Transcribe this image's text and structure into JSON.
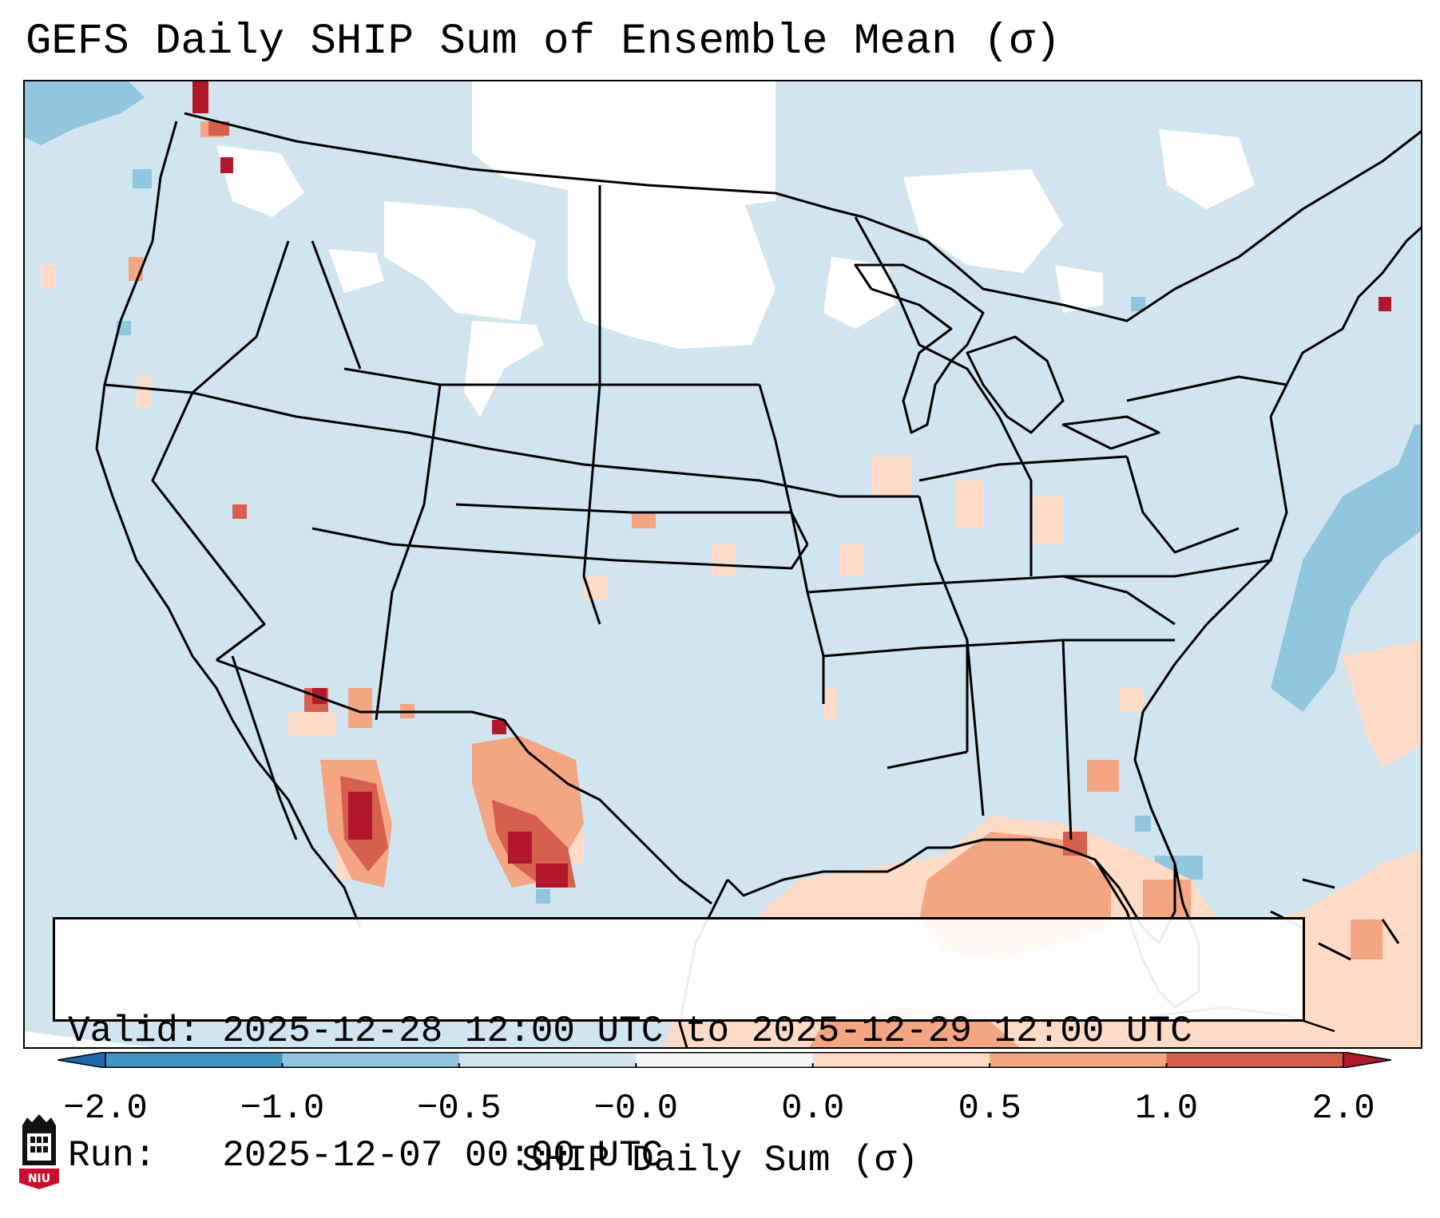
{
  "title": "GEFS Daily SHIP Sum of Ensemble Mean (σ)",
  "info": {
    "valid_label": "Valid:",
    "valid_value": "2025-12-28 12:00 UTC to 2025-12-29 12:00 UTC",
    "run_label": "Run:  ",
    "run_value": "2025-12-07 00:00 UTC"
  },
  "colorbar": {
    "label": "SHIP Daily Sum (σ)",
    "ticks": [
      "−2.0",
      "−1.0",
      "−0.5",
      "−0.0",
      "0.0",
      "0.5",
      "1.0",
      "2.0"
    ],
    "colors": [
      "#4393c3",
      "#92c5de",
      "#d1e5f0",
      "#f7f7f7",
      "#fddbc7",
      "#f4a582",
      "#d6604d",
      "#b2182b"
    ],
    "extend_low_color": "#2166ac",
    "extend_high_color": "#b2182b"
  },
  "logo": {
    "text": "NIU",
    "icon": "niu-tower-logo-icon"
  },
  "map": {
    "projection": "lambert-conformal",
    "region": "CONUS"
  }
}
